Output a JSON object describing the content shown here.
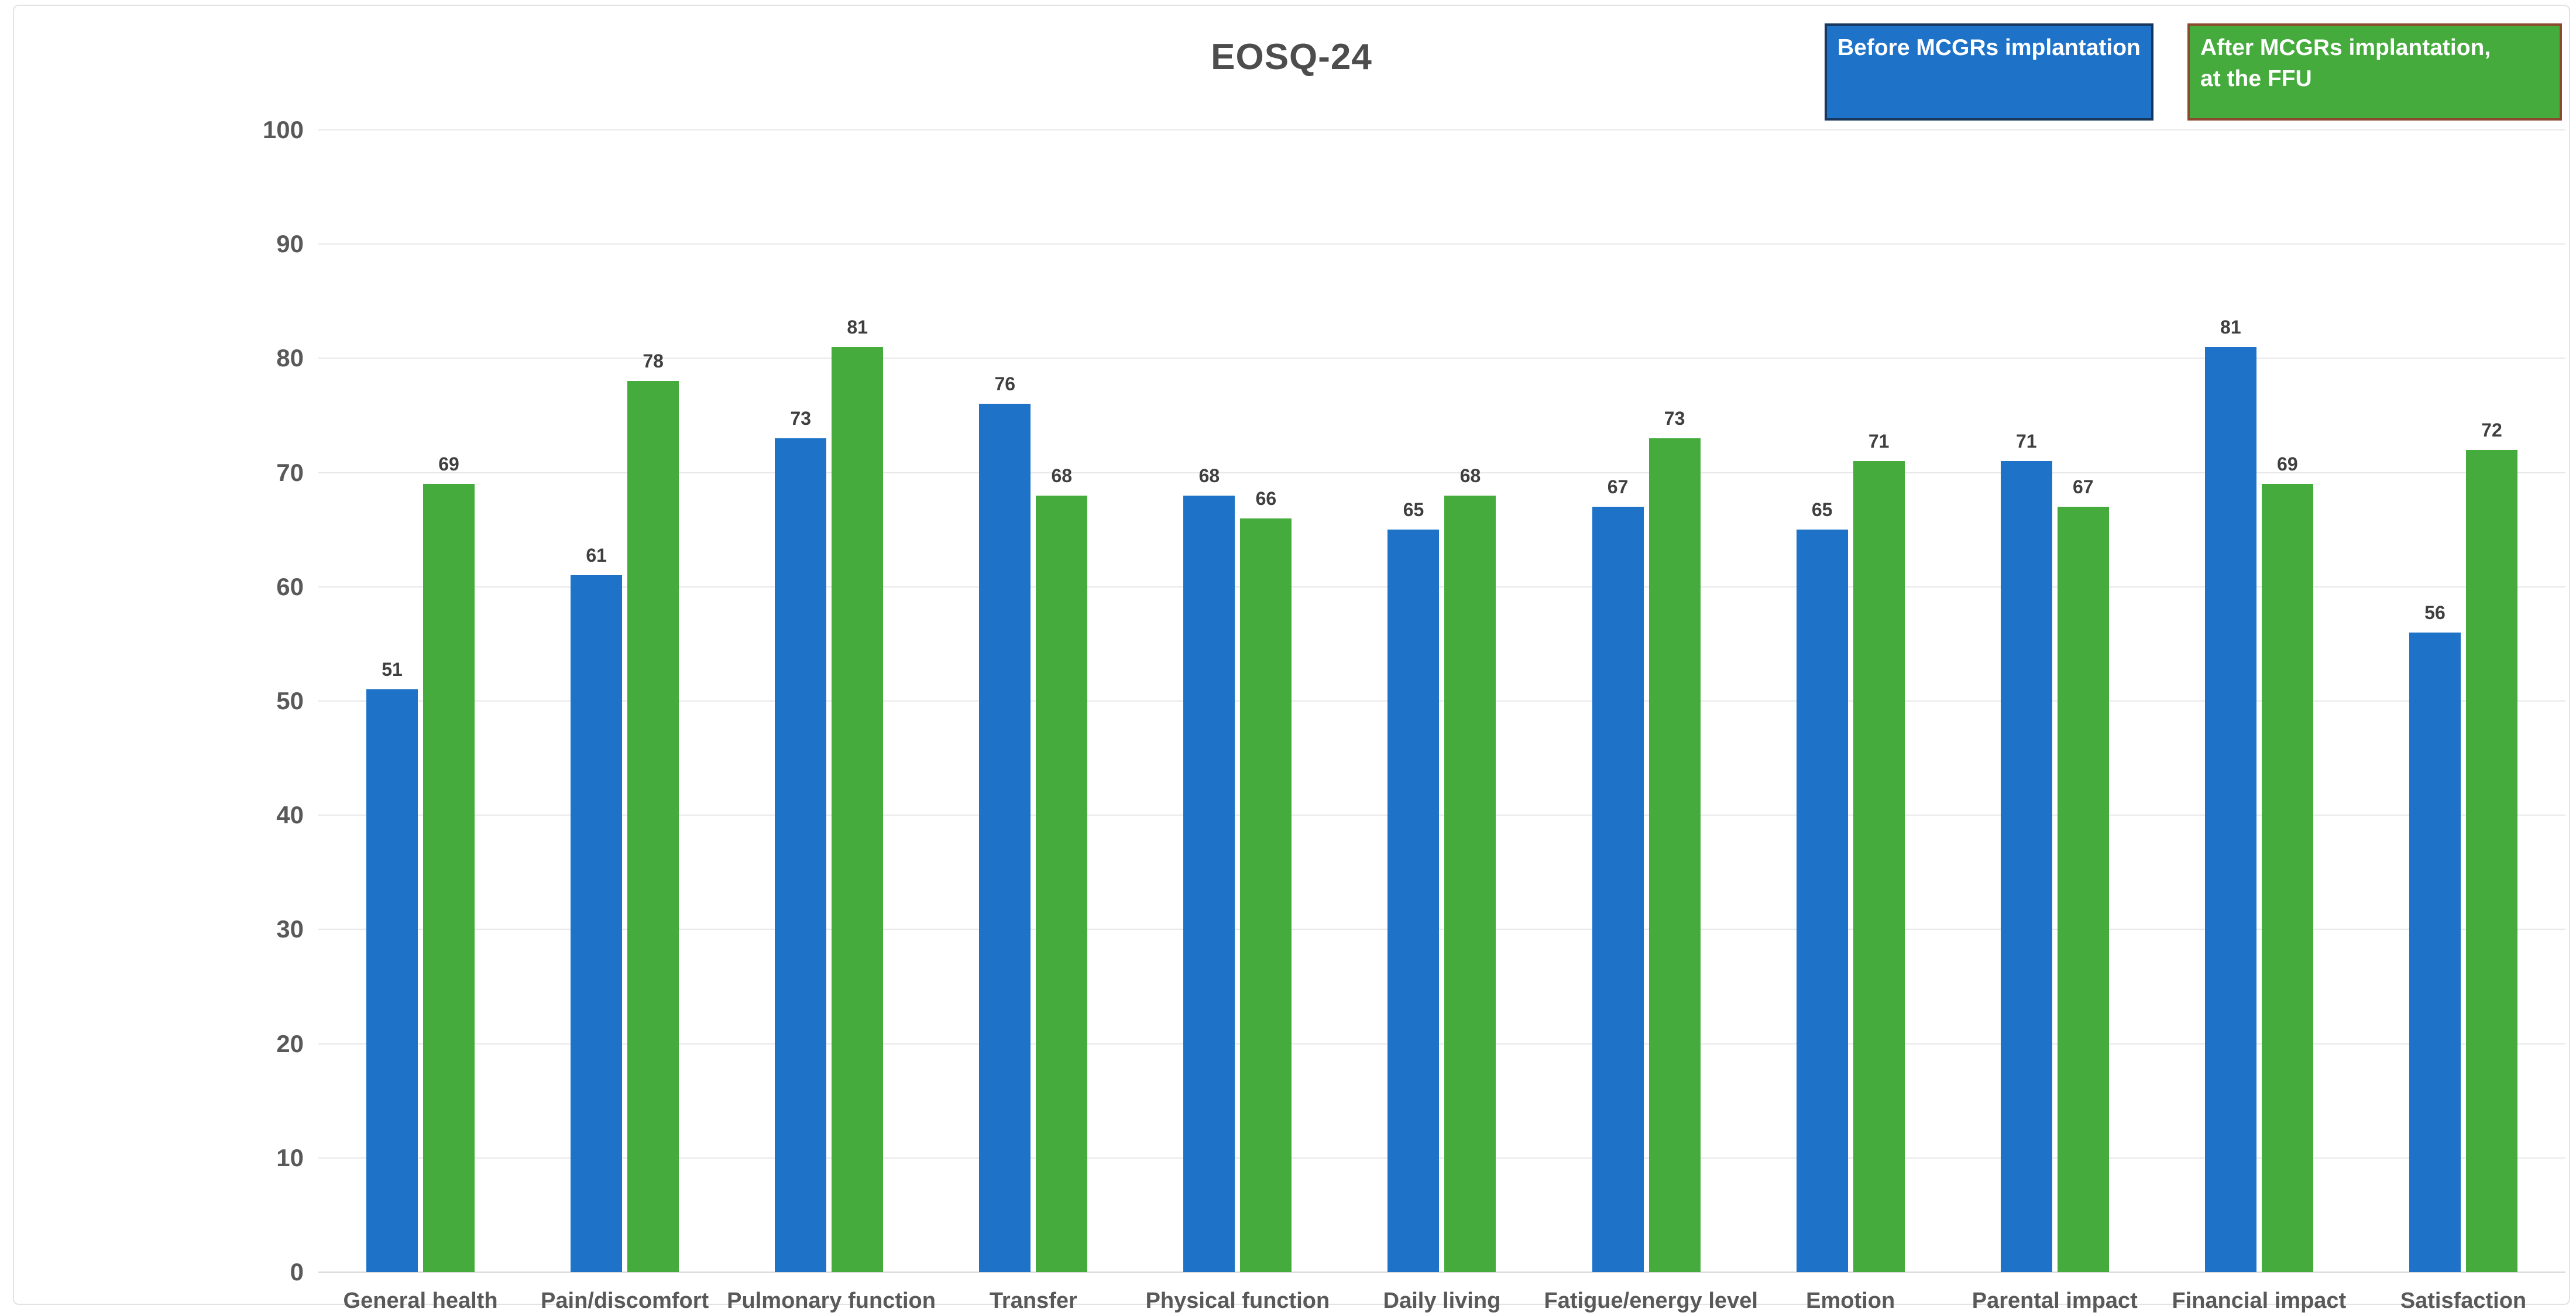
{
  "chart_data": {
    "type": "bar",
    "title": "EOSQ-24",
    "categories": [
      "General health",
      "Pain/discomfort",
      "Pulmonary function",
      "Transfer",
      "Physical function",
      "Daily living",
      "Fatigue/energy level",
      "Emotion",
      "Parental impact",
      "Financial impact",
      "Satisfaction"
    ],
    "series": [
      {
        "name": "Before MCGRs implantation",
        "values": [
          51,
          61,
          73,
          76,
          68,
          65,
          67,
          65,
          71,
          81,
          56
        ],
        "color": "#1e73c8"
      },
      {
        "name": "After MCGRs implantation, at the FFU",
        "values": [
          69,
          78,
          81,
          68,
          66,
          68,
          73,
          71,
          67,
          69,
          72
        ],
        "color": "#45ab3d"
      }
    ],
    "xlabel": "",
    "ylabel": "",
    "ylim": [
      0,
      100
    ],
    "y_tick_step": 10,
    "y_ticks": [
      "0",
      "10",
      "20",
      "30",
      "40",
      "50",
      "60",
      "70",
      "80",
      "90",
      "100"
    ],
    "grid": true,
    "value_labels": true,
    "legend_position": "top-right"
  },
  "legend": {
    "items": [
      {
        "lines": [
          "Before MCGRs implantation"
        ],
        "fill": "#1e73c8",
        "border": "#17375e"
      },
      {
        "lines": [
          "After MCGRs implantation,",
          "at the FFU"
        ],
        "fill": "#45ab3d",
        "border": "#8b4a2e"
      }
    ]
  },
  "colors": {
    "series_before": "#1e73c8",
    "series_after": "#45ab3d",
    "legend_border_before": "#17375e",
    "legend_border_after": "#8b4a2e",
    "title_text": "#4d4d4d",
    "axis_text": "#595959",
    "value_text": "#3f3f3f",
    "gridline": "#e9e9e9",
    "card_border": "#e3e3e3"
  }
}
